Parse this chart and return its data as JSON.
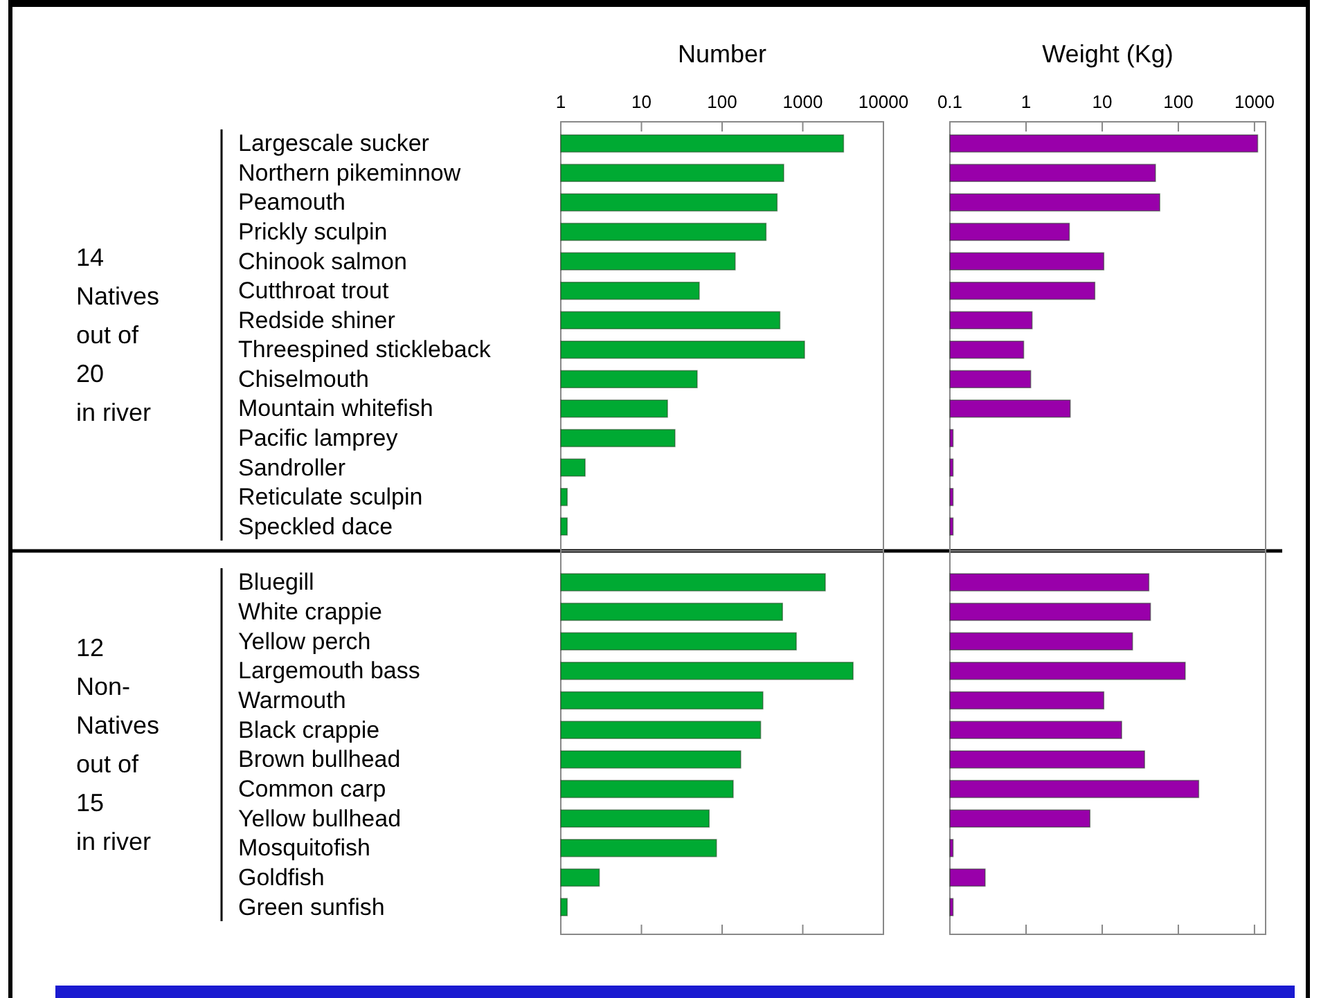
{
  "chart_data": [
    {
      "type": "bar",
      "orientation": "horizontal",
      "log": "x",
      "title": "Number",
      "categories": [
        "Largescale sucker",
        "Northern pikeminnow",
        "Peamouth",
        "Prickly sculpin",
        "Chinook salmon",
        "Cutthroat trout",
        "Redside shiner",
        "Threespined stickleback",
        "Chiselmouth",
        "Mountain whitefish",
        "Pacific lamprey",
        "Sandroller",
        "Reticulate sculpin",
        "Speckled dace"
      ],
      "values": [
        3200,
        580,
        480,
        350,
        145,
        52,
        520,
        1050,
        49,
        21,
        26,
        2,
        1.2,
        1.2
      ],
      "color": "#00aa33",
      "xlim": [
        1,
        10000
      ],
      "xticks": [
        1,
        10,
        100,
        1000,
        10000
      ],
      "tick_labels": "xy",
      "annotations": [
        "14\nNatives\nout of\n20\nin river"
      ]
    },
    {
      "type": "bar",
      "orientation": "horizontal",
      "log": "x",
      "title": "Weight (Kg)",
      "categories": [
        null,
        null,
        null,
        null,
        null,
        null,
        null,
        null,
        null,
        null,
        null,
        null,
        null,
        null
      ],
      "values": [
        1100,
        50,
        57,
        3.7,
        10.5,
        8,
        1.2,
        0.93,
        1.15,
        3.8,
        0.11,
        0.11,
        0.11,
        0.11
      ],
      "color": "#9900aa",
      "xlim": [
        0.1,
        1400
      ],
      "xticks": [
        0.1,
        1,
        10,
        100,
        1000
      ],
      "tick_labels": "x"
    },
    {
      "type": "bar",
      "orientation": "horizontal",
      "log": "x",
      "categories": [
        "Bluegill",
        "White crappie",
        "Yellow perch",
        "Largemouth bass",
        "Warmouth",
        "Black crappie",
        "Brown bullhead",
        "Common carp",
        "Yellow bullhead",
        "Mosquitofish",
        "Goldfish",
        "Green sunfish"
      ],
      "values": [
        1900,
        560,
        830,
        4200,
        320,
        300,
        170,
        137,
        69,
        85,
        3,
        1.2
      ],
      "color": "#00aa33",
      "xlim": [
        1,
        10000
      ],
      "xticks": [
        {
          "value": 10,
          "label": null
        },
        {
          "value": 100,
          "label": null
        },
        {
          "value": 1000,
          "label": null
        }
      ],
      "tick_labels": "y",
      "annotations": [
        "12\nNon-\nNatives\nout of\n15\nin river"
      ]
    },
    {
      "type": "bar",
      "orientation": "horizontal",
      "log": "x",
      "categories": [
        null,
        null,
        null,
        null,
        null,
        null,
        null,
        null,
        null,
        null,
        null,
        null
      ],
      "values": [
        41,
        43,
        25,
        123,
        10.5,
        18,
        36,
        185,
        6.9,
        0.11,
        0.29,
        0.11
      ],
      "color": "#9900aa",
      "xlim": [
        0.1,
        1400
      ],
      "xticks": [
        {
          "value": 1,
          "label": null
        },
        {
          "value": 10,
          "label": null
        },
        {
          "value": 100,
          "label": null
        },
        {
          "value": 1000,
          "label": null
        }
      ],
      "tick_labels": false
    }
  ]
}
